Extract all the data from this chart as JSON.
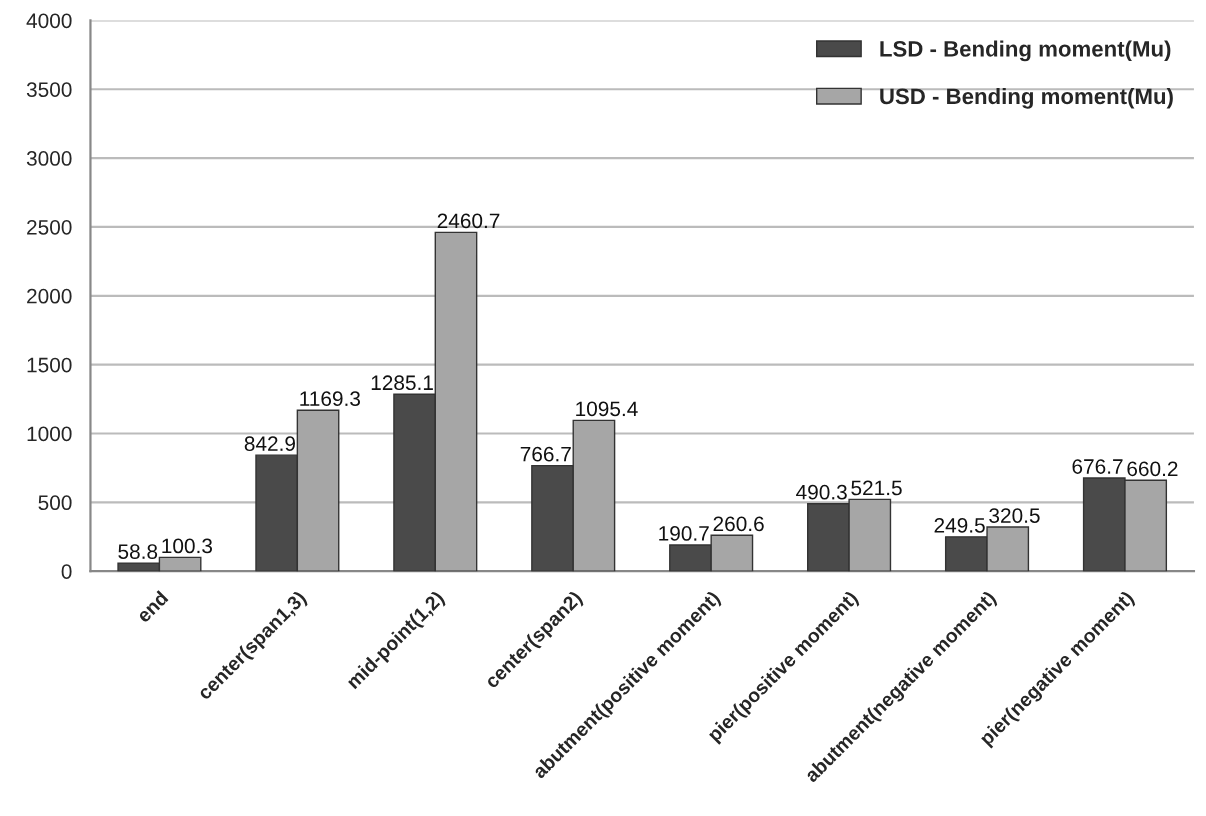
{
  "chart_data": {
    "type": "bar",
    "categories": [
      "end",
      "center(span1,3)",
      "mid-point(1,2)",
      "center(span2)",
      "abutment(positive moment)",
      "pier(positive moment)",
      "abutment(negative moment)",
      "pier(negative moment)"
    ],
    "series": [
      {
        "name": "LSD - Bending moment(Mu)",
        "color": "#4a4a4a",
        "values": [
          58.8,
          842.9,
          1285.1,
          766.7,
          190.7,
          490.3,
          249.5,
          676.7
        ]
      },
      {
        "name": "USD - Bending moment(Mu)",
        "color": "#a6a6a6",
        "values": [
          100.3,
          1169.3,
          2460.7,
          1095.4,
          260.6,
          521.5,
          320.5,
          660.2
        ]
      }
    ],
    "ylim": [
      0,
      4000
    ],
    "yticks": [
      0,
      500,
      1000,
      1500,
      2000,
      2500,
      3000,
      3500,
      4000
    ],
    "grid": "y",
    "legend": "top right",
    "data_labels": true
  }
}
